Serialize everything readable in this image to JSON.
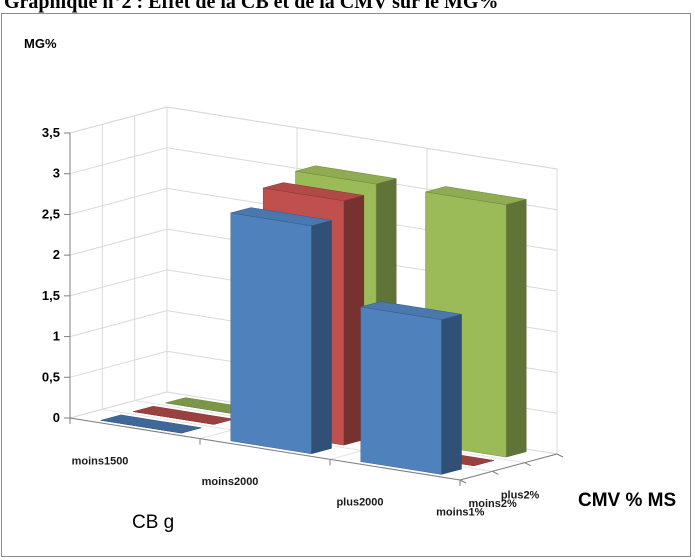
{
  "page": {
    "header_text": "Graphique n°2 : Effet de la CB et de la CMV sur le MG%"
  },
  "chart_data": {
    "type": "bar3d",
    "ylabel": "MG%",
    "xlabel": "CB g",
    "zlabel": "CMV % MS",
    "ylim": [
      0,
      3.5
    ],
    "ytick_labels": [
      "0",
      "0,5",
      "1",
      "1,5",
      "2",
      "2,5",
      "3",
      "3,5"
    ],
    "categories": [
      "moins1500",
      "moins2000",
      "plus2000"
    ],
    "series": [
      {
        "name": "moins1%",
        "color": "#4f81bd",
        "values": [
          0,
          2.8,
          1.9
        ]
      },
      {
        "name": "moins2%",
        "color": "#c0504d",
        "values": [
          0,
          3.0,
          0
        ]
      },
      {
        "name": "plus2%",
        "color": "#9bbb59",
        "values": [
          0,
          3.1,
          3.1
        ]
      }
    ],
    "grid": true
  }
}
